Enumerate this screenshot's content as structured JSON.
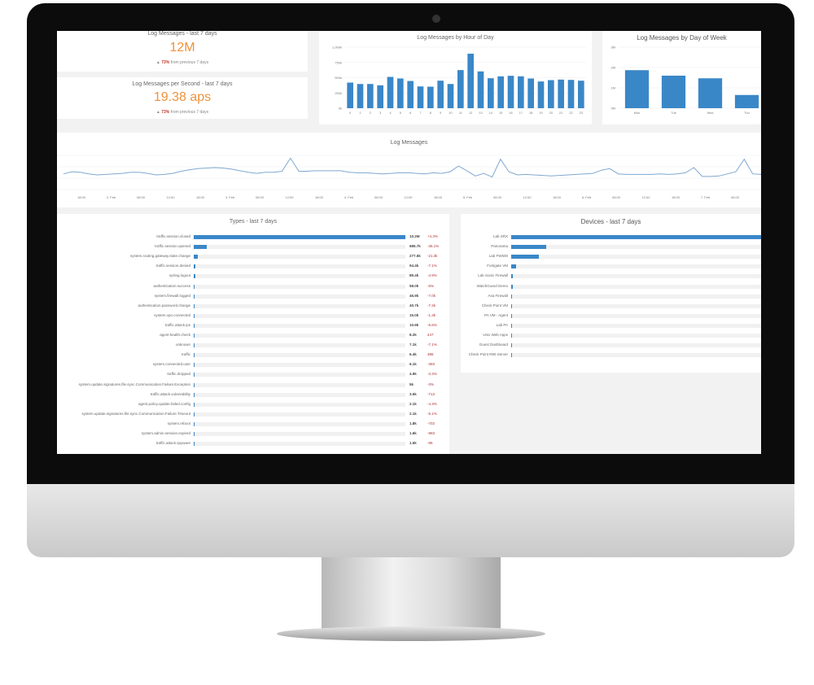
{
  "kpi": [
    {
      "title": "Log Messages - last 7 days",
      "value": "12M",
      "change": "73%",
      "change_text": "from previous 7 days"
    },
    {
      "title": "Log Messages per Second - last 7 days",
      "value": "19.38 aps",
      "change": "73%",
      "change_text": "from previous 7 days"
    }
  ],
  "hour_chart": {
    "type": "bar",
    "title": "Log Messages by Hour of Day",
    "categories": [
      "0",
      "1",
      "2",
      "3",
      "4",
      "5",
      "6",
      "7",
      "8",
      "9",
      "10",
      "11",
      "12",
      "13",
      "14",
      "15",
      "16",
      "17",
      "18",
      "19",
      "20",
      "21",
      "22",
      "23"
    ],
    "values": [
      420,
      397,
      397,
      375,
      513,
      487,
      446,
      357,
      353,
      451,
      397,
      625,
      893,
      603,
      491,
      522,
      531,
      522,
      487,
      438,
      460,
      469,
      464,
      451
    ],
    "yticks": [
      "0k",
      "250k",
      "500k",
      "750k",
      "1,000k"
    ],
    "ylim": [
      0,
      1000
    ],
    "color": "#3a87c8"
  },
  "day_chart": {
    "type": "bar",
    "title": "Log Messages by Day of Week",
    "categories": [
      "Mon",
      "Tue",
      "Wed",
      "Thu"
    ],
    "values": [
      1.87,
      1.6,
      1.47,
      0.65
    ],
    "yticks": [
      "0M",
      "1M",
      "2M",
      "3M"
    ],
    "ylim": [
      0,
      3
    ],
    "color": "#3a87c8"
  },
  "line_chart": {
    "type": "line",
    "title": "Log Messages",
    "values": [
      30,
      34,
      33,
      30,
      28,
      29,
      30,
      31,
      33,
      33,
      31,
      28,
      29,
      31,
      35,
      38,
      40,
      41,
      42,
      41,
      39,
      36,
      33,
      31,
      33,
      33,
      35,
      60,
      35,
      35,
      36,
      36,
      36,
      36,
      33,
      32,
      32,
      31,
      30,
      31,
      32,
      32,
      31,
      30,
      32,
      31,
      34,
      45,
      36,
      26,
      31,
      24,
      58,
      34,
      28,
      29,
      28,
      27,
      26,
      27,
      28,
      29,
      30,
      31,
      37,
      40,
      30,
      29,
      29,
      29,
      29,
      30,
      29,
      30,
      32,
      42,
      25,
      25,
      26,
      30,
      34,
      58,
      30,
      29
    ],
    "xticks": [
      "18:00",
      "2. Feb",
      "06:00",
      "12:00",
      "18:00",
      "3. Feb",
      "06:00",
      "12:00",
      "18:00",
      "4. Feb",
      "06:00",
      "12:00",
      "18:00",
      "5. Feb",
      "06:00",
      "12:00",
      "18:00",
      "6. Feb",
      "06:00",
      "12:00",
      "18:00",
      "7. Feb",
      "06:00",
      "12:00"
    ],
    "color": "#7fa8d0"
  },
  "types": {
    "title": "Types - last 7 days",
    "rows": [
      {
        "label": "traffic.session.closed",
        "value": "10.2M",
        "change": "+4.3%",
        "pct": 100
      },
      {
        "label": "traffic.session.opened",
        "value": "685.7k",
        "change": "-35.1%",
        "pct": 6
      },
      {
        "label": "system.routing.gateway.state.change",
        "value": "277.6k",
        "change": "-21.3k",
        "pct": 2
      },
      {
        "label": "traffic.session.denied",
        "value": "94.4k",
        "change": "-7.1%",
        "pct": 0.8
      },
      {
        "label": "syslog.logout",
        "value": "89.4k",
        "change": "-4.9%",
        "pct": 0.7
      },
      {
        "label": "authentication.success",
        "value": "58.0k",
        "change": "-6%",
        "pct": 0.4
      },
      {
        "label": "system.firewall.logged",
        "value": "46.9k",
        "change": "-7.0k",
        "pct": 0.3
      },
      {
        "label": "authentication.password.change",
        "value": "40.7k",
        "change": "-7.4k",
        "pct": 0.3
      },
      {
        "label": "system.vpn.connected",
        "value": "15.0k",
        "change": "-1.3k",
        "pct": 0.2
      },
      {
        "label": "traffic.attack.ips",
        "value": "10.9k",
        "change": "-6.6%",
        "pct": 0.1
      },
      {
        "label": "agent.health.check",
        "value": "8.2k",
        "change": "447",
        "pct": 0
      },
      {
        "label": "unknown",
        "value": "7.1k",
        "change": "-7.1%",
        "pct": 0
      },
      {
        "label": "traffic",
        "value": "6.4k",
        "change": "386",
        "pct": 0
      },
      {
        "label": "system.connected.user",
        "value": "6.1k",
        "change": "-393",
        "pct": 0
      },
      {
        "label": "traffic.dropped",
        "value": "4.9k",
        "change": "-3.3%",
        "pct": 0
      },
      {
        "label": "system.update.signatures.file.sync.Communication.Failure.Exception",
        "value": "5k",
        "change": "-3%",
        "pct": 0
      },
      {
        "label": "traffic.attack.vulnerability",
        "value": "3.5k",
        "change": "-713",
        "pct": 0
      },
      {
        "label": "agent.policy.update.failed.config",
        "value": "2.1k",
        "change": "-4.3%",
        "pct": 0
      },
      {
        "label": "system.update.signatures.file.sync.Communication.Failure.Timeout",
        "value": "2.1k",
        "change": "-5.1%",
        "pct": 0
      },
      {
        "label": "system.reboot",
        "value": "1.8k",
        "change": "-702",
        "pct": 0
      },
      {
        "label": "system.admin.session.expired",
        "value": "1.6k",
        "change": "-993",
        "pct": 0
      },
      {
        "label": "traffic.attack.spyware",
        "value": "1.5k",
        "change": "-85",
        "pct": 0
      }
    ]
  },
  "devices": {
    "title": "Devices - last 7 days",
    "rows": [
      {
        "label": "Lab SRX",
        "pct": 100
      },
      {
        "label": "Panorama",
        "pct": 14
      },
      {
        "label": "Lab FW500",
        "pct": 11
      },
      {
        "label": "Fortigate VM",
        "pct": 1.8
      },
      {
        "label": "Lab Sonic Firewall",
        "pct": 0.8
      },
      {
        "label": "WatchGuard Demo",
        "pct": 0.8
      },
      {
        "label": "Asa Firewall",
        "pct": 0.2
      },
      {
        "label": "Check Point VM",
        "pct": 0.2
      },
      {
        "label": "PA VM - Agent",
        "pct": 0.2
      },
      {
        "label": "Lab PA",
        "pct": 0.2
      },
      {
        "label": "Unix Web Apps",
        "pct": 0
      },
      {
        "label": "Guest Dashboard",
        "pct": 0
      },
      {
        "label": "Check Point R80 Server",
        "pct": 0
      }
    ]
  }
}
